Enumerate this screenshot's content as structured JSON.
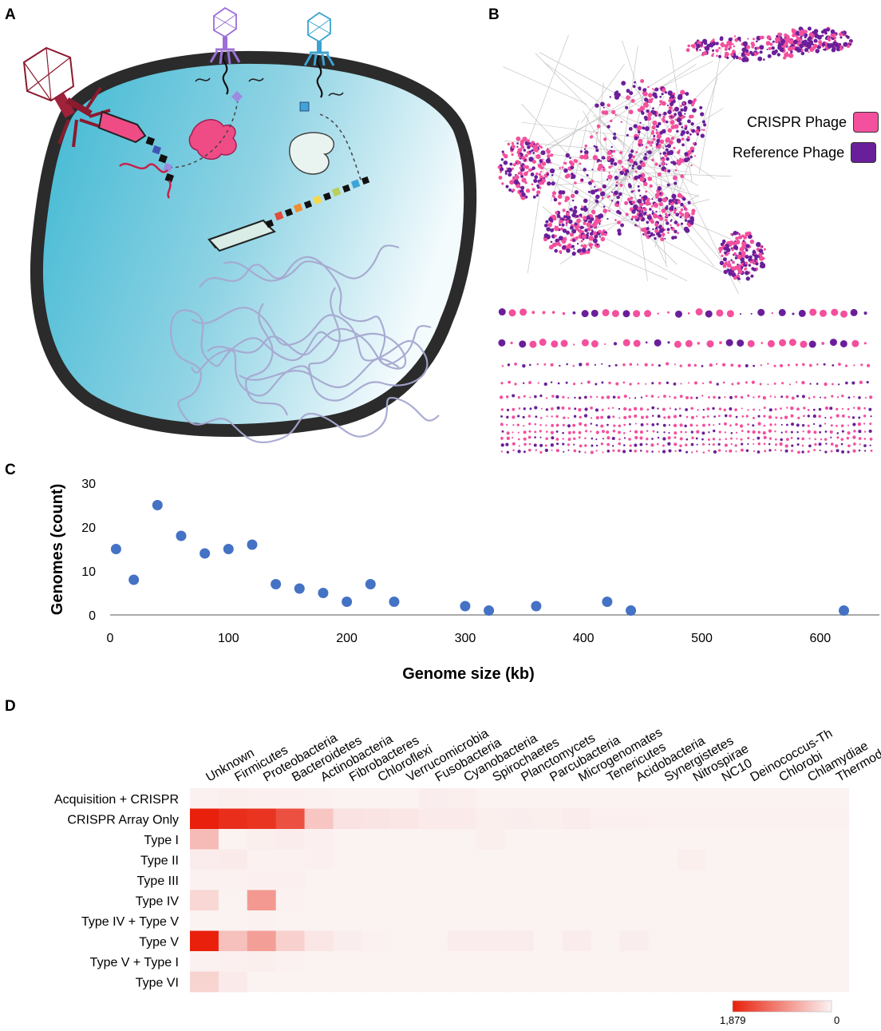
{
  "panels": {
    "a": "A",
    "b": "B",
    "c": "C",
    "d": "D"
  },
  "legend_b": {
    "crispr": "CRISPR Phage",
    "reference": "Reference Phage",
    "crispr_color": "#f3509d",
    "reference_color": "#6a1f9a"
  },
  "chart_data": [
    {
      "type": "scatter",
      "xlabel": "Genome size (kb)",
      "ylabel": "Genomes (count)",
      "xlim": [
        0,
        650
      ],
      "ylim": [
        0,
        30
      ],
      "xticks": [
        0,
        100,
        200,
        300,
        400,
        500,
        600
      ],
      "yticks": [
        0,
        10,
        20,
        30
      ],
      "color": "#4472c4",
      "x": [
        5,
        20,
        40,
        60,
        80,
        100,
        120,
        140,
        160,
        180,
        200,
        220,
        240,
        300,
        320,
        360,
        420,
        440,
        620
      ],
      "y": [
        15,
        8,
        25,
        18,
        14,
        15,
        16,
        7,
        6,
        5,
        3,
        7,
        3,
        2,
        1,
        2,
        3,
        1,
        1
      ]
    },
    {
      "type": "heatmap",
      "columns": [
        "Unknown",
        "Firmicutes",
        "Proteobacteria",
        "Bacteroidetes",
        "Actinobacteria",
        "Fibrobacteres",
        "Chloroflexi",
        "Verrucomicrobia",
        "Fusobacteria",
        "Cyanobacteria",
        "Spirochaetes",
        "Planctomycets",
        "Parcubacteria",
        "Microgenomates",
        "Tenericutes",
        "Acidobacteria",
        "Synergistetes",
        "Nitrospirae",
        "NC10",
        "Deinococcus-Th",
        "Chlorobi",
        "Chlamydiae",
        "Thermodes."
      ],
      "rows": [
        "Acquisition + CRISPR",
        "CRISPR Array Only",
        "Type I",
        "Type II",
        "Type III",
        "Type IV",
        "Type IV + Type V",
        "Type V",
        "Type V + Type I",
        "Type VI"
      ],
      "scale_min": 0,
      "scale_max": 1879,
      "scale_max_label": "1,879",
      "scale_min_label": "0",
      "color_high": "#e8200c",
      "color_low": "#fbf3f3",
      "values": [
        [
          20,
          40,
          30,
          30,
          15,
          10,
          10,
          10,
          50,
          40,
          10,
          10,
          10,
          10,
          10,
          10,
          10,
          10,
          10,
          10,
          10,
          10,
          10
        ],
        [
          1879,
          1750,
          1700,
          1450,
          400,
          150,
          130,
          120,
          70,
          80,
          40,
          50,
          40,
          60,
          30,
          30,
          20,
          20,
          20,
          20,
          20,
          20,
          20
        ],
        [
          500,
          10,
          40,
          60,
          30,
          10,
          10,
          10,
          10,
          10,
          40,
          10,
          10,
          10,
          10,
          10,
          10,
          10,
          10,
          10,
          10,
          10,
          10
        ],
        [
          60,
          70,
          20,
          20,
          30,
          10,
          10,
          10,
          10,
          10,
          10,
          10,
          10,
          10,
          10,
          10,
          10,
          40,
          10,
          10,
          10,
          10,
          10
        ],
        [
          20,
          20,
          30,
          30,
          10,
          10,
          10,
          10,
          10,
          10,
          10,
          10,
          10,
          10,
          10,
          10,
          10,
          10,
          10,
          10,
          10,
          10,
          10
        ],
        [
          250,
          10,
          800,
          20,
          10,
          10,
          10,
          10,
          10,
          10,
          10,
          10,
          10,
          10,
          10,
          10,
          10,
          10,
          10,
          10,
          10,
          10,
          10
        ],
        [
          10,
          10,
          20,
          10,
          10,
          10,
          10,
          10,
          10,
          10,
          10,
          10,
          10,
          10,
          10,
          10,
          10,
          10,
          10,
          10,
          10,
          10,
          10
        ],
        [
          1879,
          450,
          750,
          300,
          120,
          50,
          20,
          10,
          10,
          60,
          60,
          60,
          10,
          60,
          10,
          50,
          10,
          10,
          10,
          10,
          10,
          10,
          10
        ],
        [
          20,
          30,
          40,
          20,
          10,
          10,
          10,
          10,
          10,
          10,
          10,
          10,
          10,
          10,
          10,
          10,
          10,
          10,
          10,
          10,
          10,
          10,
          10
        ],
        [
          280,
          80,
          10,
          10,
          10,
          10,
          10,
          10,
          10,
          10,
          10,
          10,
          10,
          10,
          10,
          10,
          10,
          10,
          10,
          10,
          10,
          10,
          10
        ]
      ]
    }
  ]
}
